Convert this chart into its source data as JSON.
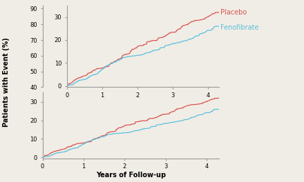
{
  "xlabel": "Years of Follow-up",
  "ylabel": "Patients with Event (%)",
  "placebo_color": "#d9534f",
  "fenofibrate_color": "#5bc0de",
  "x_max": 4.3,
  "placebo_label": "Placebo",
  "fenofibrate_label": "Fenofibrate",
  "label_fontsize": 7,
  "tick_fontsize": 6,
  "main_yticks": [
    0,
    10,
    20,
    30
  ],
  "outer_left_yticks": [
    40,
    50,
    60,
    70,
    80,
    90
  ],
  "xticks": [
    0,
    1,
    2,
    3,
    4
  ],
  "background_color": "#f0ede6",
  "spine_color": "#999999",
  "placebo_final": 32.0,
  "fenofibrate_final": 26.0,
  "n_points": 400,
  "seed_p": 7,
  "seed_f": 13
}
